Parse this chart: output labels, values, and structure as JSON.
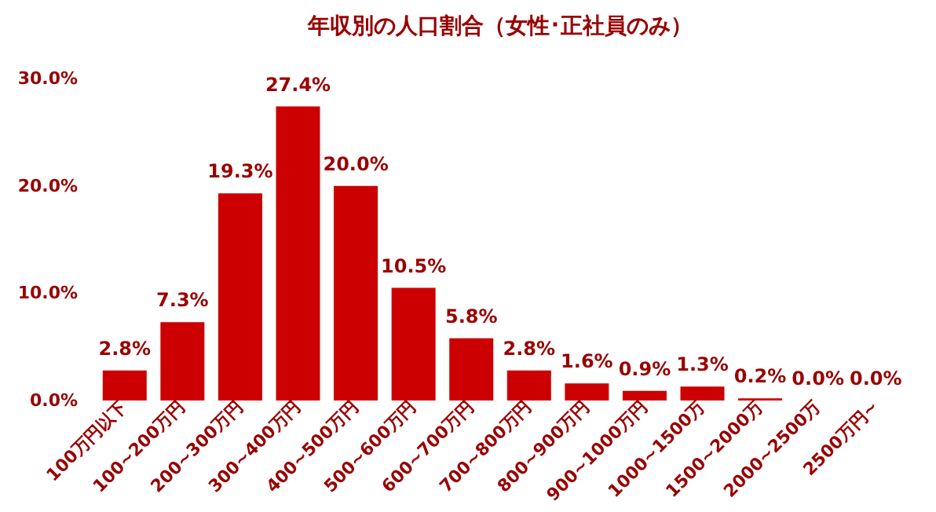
{
  "chart_data": {
    "type": "bar",
    "title": "年収別の人口割合（女性･正社員のみ）",
    "categories": [
      "100万円以下",
      "100~200万円",
      "200~300万円",
      "300~400万円",
      "400~500万円",
      "500~600万円",
      "600~700万円",
      "700~800万円",
      "800~900万円",
      "900~1000万円",
      "1000~1500万",
      "1500~2000万",
      "2000~2500万",
      "2500万円~"
    ],
    "values": [
      2.8,
      7.3,
      19.3,
      27.4,
      20.0,
      10.5,
      5.8,
      2.8,
      1.6,
      0.9,
      1.3,
      0.2,
      0.0,
      0.0
    ],
    "value_labels": [
      "2.8%",
      "7.3%",
      "19.3%",
      "27.4%",
      "20.0%",
      "10.5%",
      "5.8%",
      "2.8%",
      "1.6%",
      "0.9%",
      "1.3%",
      "0.2%",
      "0.0%",
      "0.0%"
    ],
    "color": "#cc0000",
    "ylim": [
      0,
      30
    ],
    "yticks": [
      {
        "value": 0,
        "label": "0.0%"
      },
      {
        "value": 10,
        "label": "10.0%"
      },
      {
        "value": 20,
        "label": "20.0%"
      },
      {
        "value": 30,
        "label": "30.0%"
      }
    ],
    "grid": false
  }
}
